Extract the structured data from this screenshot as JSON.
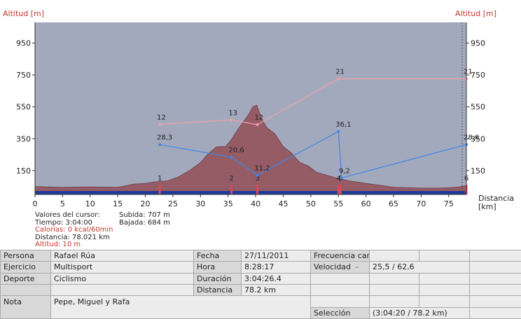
{
  "chart_data": {
    "type": "area",
    "xlabel": "Distancia [km]",
    "xlabel_line1": "Distancia",
    "xlabel_line2": "[km]",
    "ylabel_left": "Altitud [m]",
    "ylabel_right": "Altitud [m]",
    "xlim": [
      0,
      78.2
    ],
    "ylim": [
      0,
      1080
    ],
    "x_ticks": [
      0,
      5,
      10,
      15,
      20,
      25,
      30,
      35,
      40,
      45,
      50,
      55,
      60,
      65,
      70,
      75
    ],
    "y_ticks": [
      150,
      350,
      550,
      750,
      950
    ],
    "background_color": "#a3a9bd",
    "profile_fill": "#955c66",
    "profile": {
      "x": [
        0,
        5,
        10,
        15,
        18,
        20,
        22,
        24,
        26,
        28,
        30,
        31.5,
        33,
        34.5,
        35.5,
        37,
        38.5,
        39.5,
        40.2,
        41,
        42,
        43.5,
        45,
        46.5,
        48,
        49.5,
        51,
        53,
        55,
        57,
        60,
        62,
        65,
        68,
        70,
        73,
        75,
        77,
        78.2
      ],
      "y": [
        50,
        45,
        48,
        45,
        65,
        70,
        80,
        85,
        110,
        150,
        200,
        260,
        300,
        300,
        340,
        420,
        490,
        550,
        560,
        480,
        420,
        380,
        300,
        260,
        200,
        180,
        140,
        120,
        100,
        85,
        70,
        60,
        45,
        42,
        40,
        40,
        42,
        48,
        55
      ]
    },
    "series": [
      {
        "name": "Frecuencia cardíaca",
        "color": "#f2a0a8",
        "points": [
          {
            "x": 22.6,
            "y": 440,
            "label": "12"
          },
          {
            "x": 35.6,
            "y": 468,
            "label": "13"
          },
          {
            "x": 40.3,
            "y": 438,
            "label": "12"
          },
          {
            "x": 55.0,
            "y": 726,
            "label": "21"
          },
          {
            "x": 78.2,
            "y": 726,
            "label": "21"
          }
        ]
      },
      {
        "name": "Velocidad",
        "color": "#3d86e8",
        "points": [
          {
            "x": 22.6,
            "y": 313,
            "label": "28,3"
          },
          {
            "x": 35.6,
            "y": 234,
            "label": "20,6"
          },
          {
            "x": 40.3,
            "y": 121,
            "label": "11,2"
          },
          {
            "x": 55.0,
            "y": 395,
            "label": "36,1"
          },
          {
            "x": 55.6,
            "y": 104,
            "label": "9,2"
          },
          {
            "x": 78.2,
            "y": 313,
            "label": "28,6"
          }
        ]
      }
    ],
    "markers": [
      {
        "x": 22.6,
        "label": "1"
      },
      {
        "x": 35.6,
        "label": "2"
      },
      {
        "x": 40.3,
        "label": "3"
      },
      {
        "x": 55.0,
        "label": "4"
      },
      {
        "x": 55.4,
        "label": "5"
      },
      {
        "x": 78.2,
        "label": "6"
      }
    ]
  },
  "cursor": {
    "title": "Valores del cursor:",
    "tiempo": "Tiempo: 3:04:00",
    "calorias": "Calorías: 0 kcal/60min",
    "distancia": "Distancia: 78.021 km",
    "altitud": "Altitud: 10 m",
    "subida": "Subida: 707 m",
    "bajada": "Bajada: 684 m"
  },
  "summary": {
    "persona_label": "Persona",
    "persona_value": "Rafael Rúa",
    "ejercicio_label": "Ejercicio",
    "ejercicio_value": "Multisport",
    "deporte_label": "Deporte",
    "deporte_value": "Ciclismo",
    "nota_label": "Nota",
    "nota_value": "Pepe, Miguel y Rafa",
    "fecha_label": "Fecha",
    "fecha_value": "27/11/2011",
    "hora_label": "Hora",
    "hora_value": "8:28:17",
    "duracion_label": "Duración",
    "duracion_value": "3:04:26.4",
    "distancia_label": "Distancia",
    "distancia_value": "78.2 km",
    "frecuencia_label": "Frecuencia card",
    "velocidad_label": "Velocidad",
    "velocidad_dash": "–",
    "velocidad_value": "25,5 / 62,6",
    "seleccion_label": "Selección",
    "seleccion_value": "(3:04:20 / 78.2 km)"
  }
}
